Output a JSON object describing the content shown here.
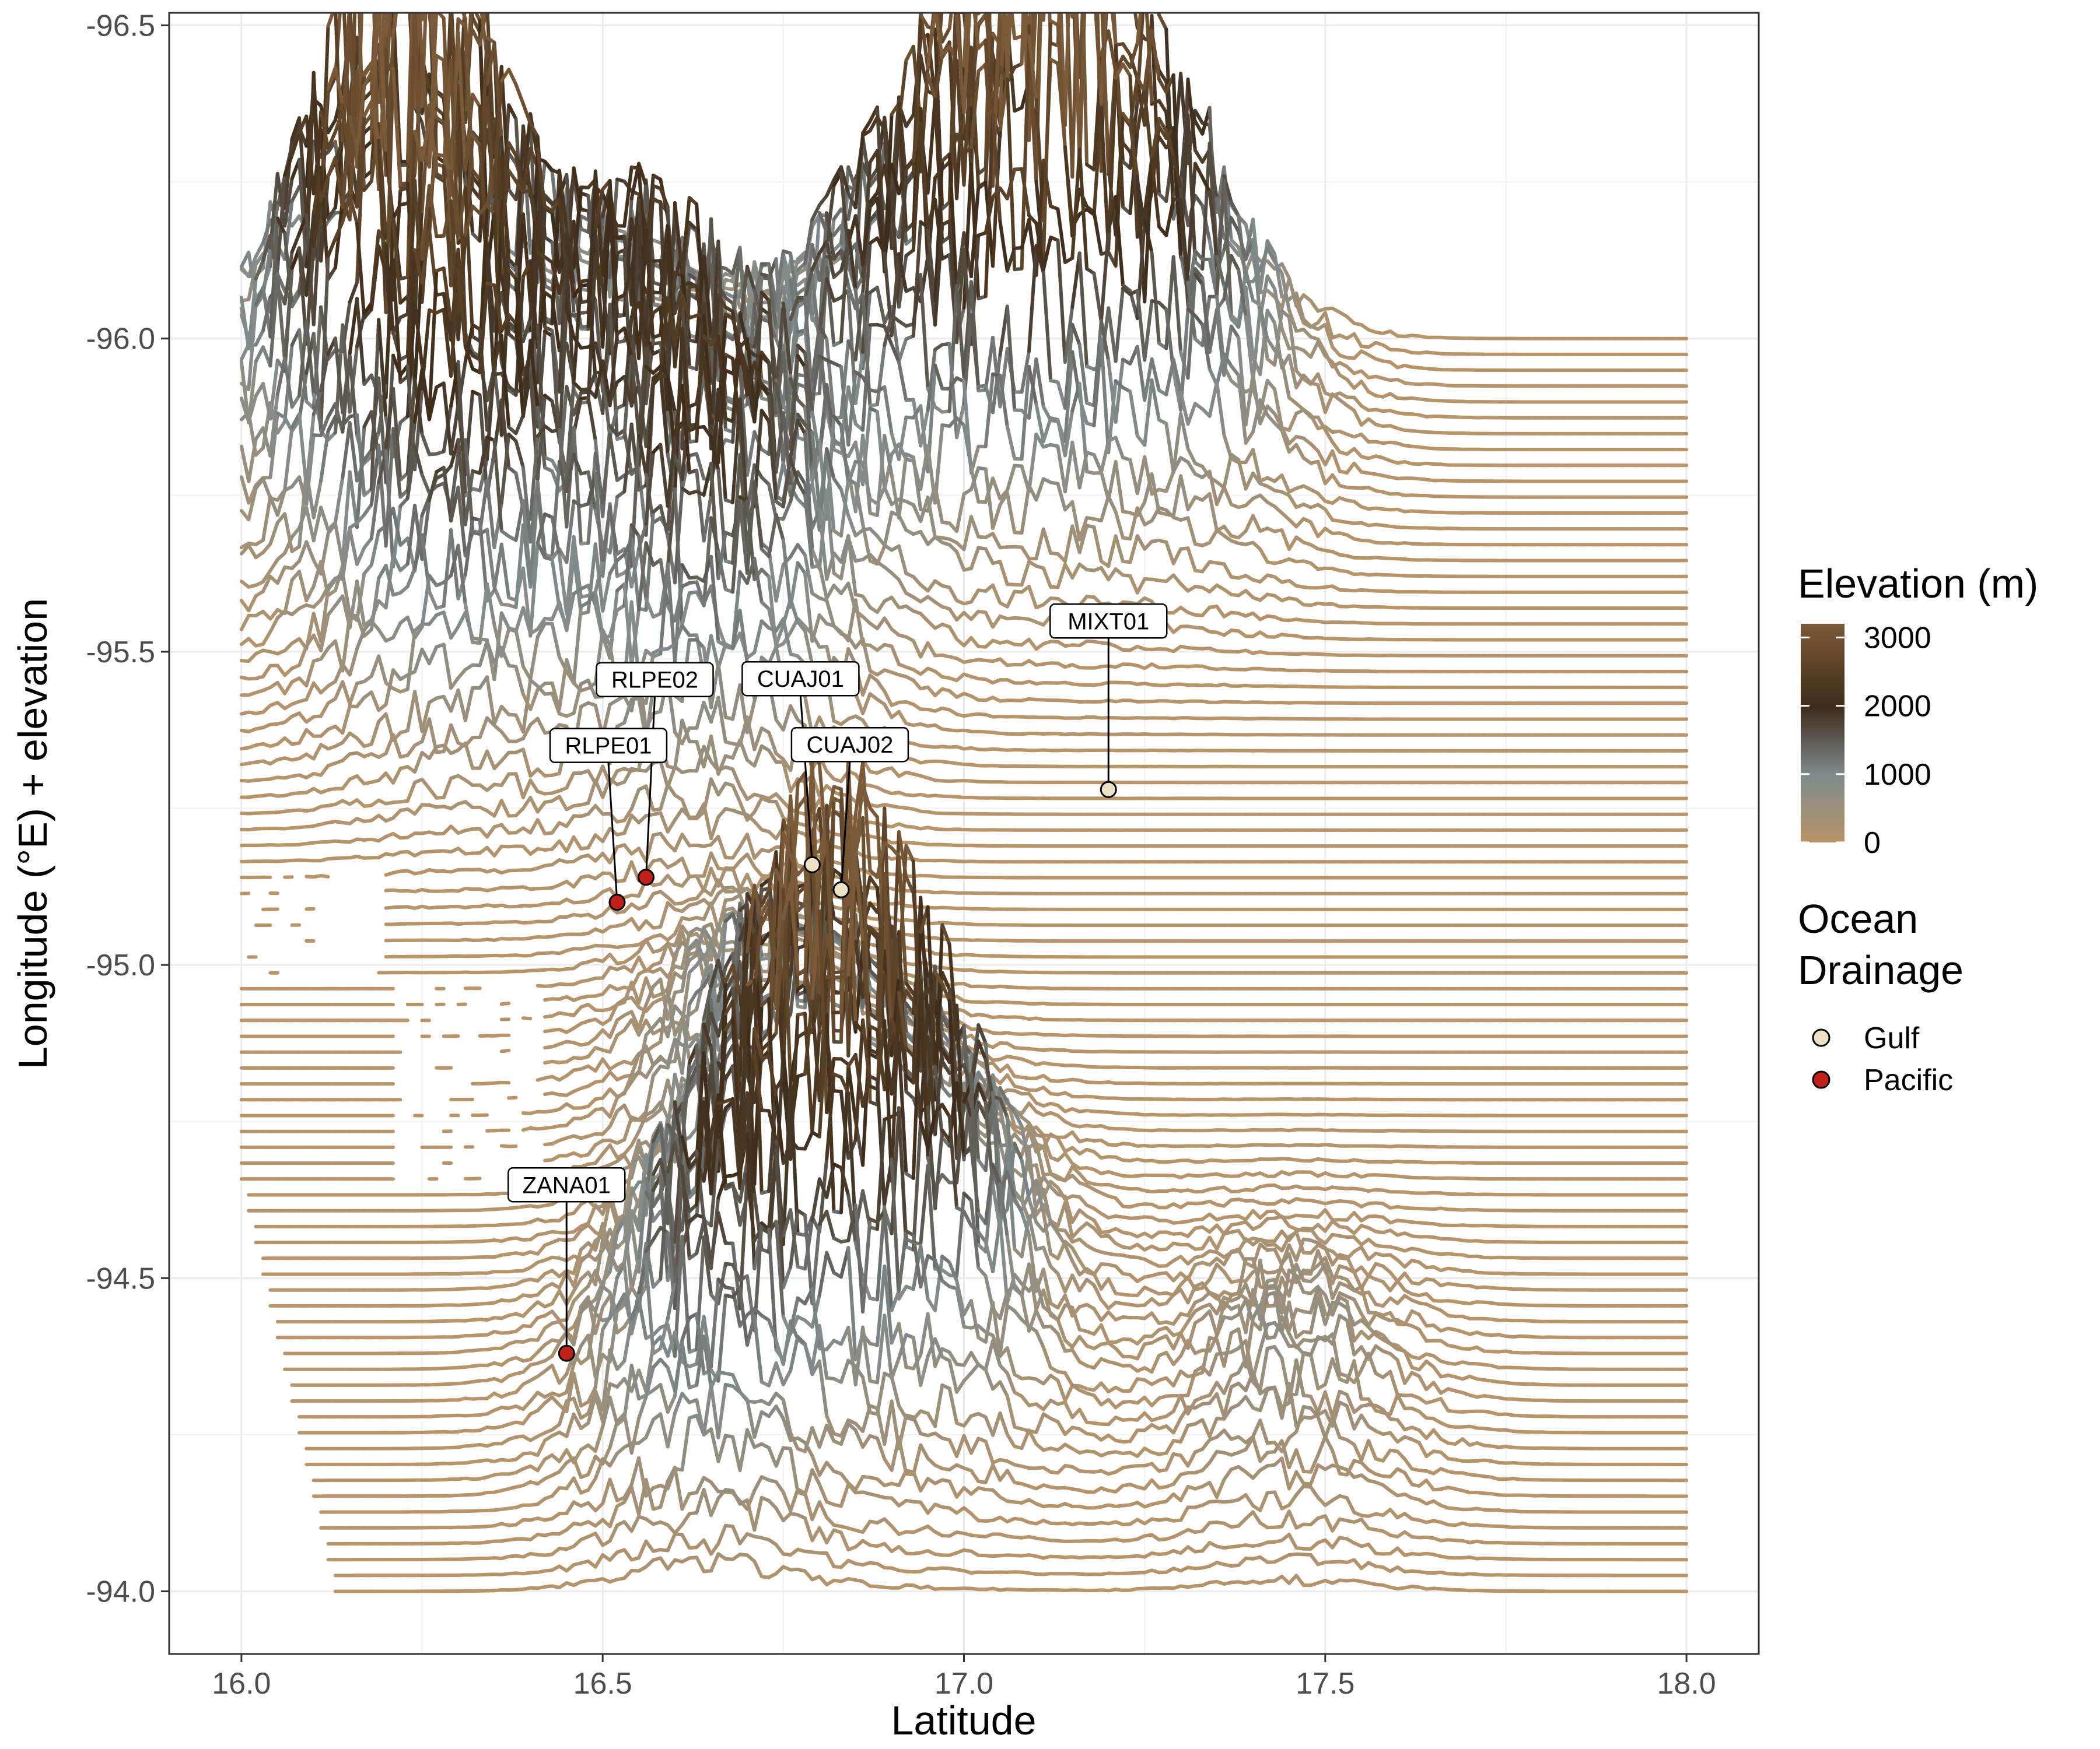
{
  "chart_data": {
    "type": "line",
    "subtype": "ridgeline elevation profiles",
    "xlabel": "Latitude",
    "ylabel": "Longitude (°E) + elevation",
    "xlim": [
      15.9,
      18.1
    ],
    "ylim": [
      -93.9,
      -96.52
    ],
    "y_reversed": true,
    "x_ticks": [
      16.0,
      16.5,
      17.0,
      17.5,
      18.0
    ],
    "x_tick_labels": [
      "16.0",
      "16.5",
      "17.0",
      "17.5",
      "18.0"
    ],
    "y_ticks": [
      -96.5,
      -96.0,
      -95.5,
      -95.0,
      -94.5,
      -94.0
    ],
    "y_tick_labels": [
      "-96.5",
      "-96.0",
      "-95.5",
      "-95.0",
      "-94.5",
      "-94.0"
    ],
    "grid": true,
    "profiles": {
      "lon_start": -96.0,
      "lon_end": -94.0,
      "count": 80,
      "lat_start": 16.0,
      "lat_end": 18.0,
      "elevation_scale_deg_per_m": 0.00019,
      "peaks": [
        {
          "lat": 16.15,
          "lon": -95.85,
          "elev": 1700
        },
        {
          "lat": 16.28,
          "lon": -95.88,
          "elev": 1900
        },
        {
          "lat": 16.3,
          "lon": -95.55,
          "elev": 1600
        },
        {
          "lat": 16.55,
          "lon": -95.78,
          "elev": 1500
        },
        {
          "lat": 16.7,
          "lon": -95.55,
          "elev": 1200
        },
        {
          "lat": 16.9,
          "lon": -95.85,
          "elev": 1400
        },
        {
          "lat": 17.1,
          "lon": -95.92,
          "elev": 2800
        },
        {
          "lat": 17.3,
          "lon": -95.9,
          "elev": 1400
        },
        {
          "lat": 16.6,
          "lon": -95.4,
          "elev": 800
        },
        {
          "lat": 16.8,
          "lon": -94.55,
          "elev": 2200
        },
        {
          "lat": 16.65,
          "lon": -94.3,
          "elev": 1500
        },
        {
          "lat": 16.95,
          "lon": -94.45,
          "elev": 1500
        },
        {
          "lat": 16.7,
          "lon": -94.82,
          "elev": 700
        },
        {
          "lat": 17.45,
          "lon": -94.3,
          "elev": 600
        }
      ]
    },
    "sites": [
      {
        "name": "MIXT01",
        "lat": 17.2,
        "lon": -95.28,
        "drainage": "Gulf"
      },
      {
        "name": "CUAJ01",
        "lat": 16.79,
        "lon": -95.16,
        "drainage": "Gulf"
      },
      {
        "name": "CUAJ02",
        "lat": 16.83,
        "lon": -95.12,
        "drainage": "Gulf"
      },
      {
        "name": "RLPE02",
        "lat": 16.56,
        "lon": -95.14,
        "drainage": "Pacific"
      },
      {
        "name": "RLPE01",
        "lat": 16.52,
        "lon": -95.1,
        "drainage": "Pacific"
      },
      {
        "name": "ZANA01",
        "lat": 16.45,
        "lon": -94.38,
        "drainage": "Pacific"
      }
    ],
    "legend_position": "right",
    "color_legend": {
      "title": "Elevation (m)",
      "breaks": [
        3000,
        2000,
        1000,
        0
      ],
      "break_labels": [
        "3000",
        "2000",
        "1000",
        "0"
      ],
      "range": [
        0,
        3200
      ],
      "colors": [
        "#b89468",
        "#7f8a8c",
        "#3e2c1a",
        "#7a5a38"
      ]
    },
    "shape_legend": {
      "title_lines": [
        "Ocean",
        "Drainage"
      ],
      "items": [
        {
          "label": "Gulf",
          "color": "#ece2c6"
        },
        {
          "label": "Pacific",
          "color": "#c0201a"
        }
      ]
    }
  }
}
